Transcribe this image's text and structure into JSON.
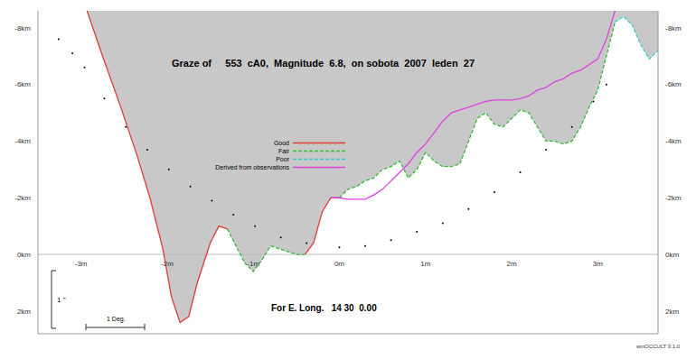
{
  "chart_data": {
    "type": "line",
    "title": "Graze of     553  cA0,  Magnitude  6.8,  on sobota  2007  leden  27",
    "annotations": [
      "For E. Long.   14 30  0.00",
      "1 Deg.",
      "1 \"",
      "winOCCULT 3.1.0"
    ],
    "color": "#c8c8c8",
    "grid": false,
    "legend": "center",
    "xlim": [
      -3.5,
      3.7
    ],
    "xticks": [
      {
        "value": -3,
        "label": "-3m"
      },
      {
        "value": -2,
        "label": "-2m"
      },
      {
        "value": -1,
        "label": "-1m"
      },
      {
        "value": 0,
        "label": "0m"
      },
      {
        "value": 1,
        "label": "1m"
      },
      {
        "value": 2,
        "label": "2m"
      },
      {
        "value": 3,
        "label": "3m"
      }
    ],
    "ylim": [
      -8.6,
      2.8
    ],
    "yticks": [
      {
        "value": -8,
        "label": "-8km"
      },
      {
        "value": -6,
        "label": "-6km"
      },
      {
        "value": -4,
        "label": "-4km"
      },
      {
        "value": -2,
        "label": "-2km"
      },
      {
        "value": 0,
        "label": "0km"
      },
      {
        "value": 2,
        "label": "2km"
      }
    ],
    "x": [
      -2.93,
      -2.75,
      -2.55,
      -2.35,
      -2.2,
      -2.05,
      -1.95,
      -1.85,
      -1.75,
      -1.65,
      -1.5,
      -1.4,
      -1.3,
      -1.2,
      -1.1,
      -1.0,
      -0.9,
      -0.8,
      -0.7,
      -0.6,
      -0.5,
      -0.4,
      -0.3,
      -0.2,
      -0.1,
      0.0,
      0.1,
      0.2,
      0.3,
      0.4,
      0.5,
      0.6,
      0.7,
      0.8,
      0.9,
      1.0,
      1.1,
      1.2,
      1.3,
      1.4,
      1.5,
      1.6,
      1.7,
      1.8,
      1.9,
      2.0,
      2.1,
      2.2,
      2.3,
      2.4,
      2.5,
      2.6,
      2.7,
      2.8,
      2.9,
      3.0,
      3.1,
      3.2,
      3.3,
      3.4,
      3.5,
      3.6,
      3.7
    ],
    "series": [
      {
        "name": "Good",
        "type": "area",
        "color": "#e03c31",
        "line_style": "solid",
        "values": [
          -8.6,
          -7.0,
          -5.3,
          -3.5,
          -2.0,
          -0.2,
          1.5,
          2.4,
          2.2,
          1.0,
          -0.4,
          -1.0,
          -0.9,
          null,
          null,
          null,
          null,
          null,
          null,
          null,
          null,
          0.0,
          -0.4,
          -1.5,
          -2.0,
          -2.0,
          null,
          null,
          null,
          null,
          null,
          null,
          null,
          null,
          null,
          null,
          null,
          null,
          null,
          null,
          null,
          null,
          null,
          null,
          null,
          null,
          null,
          null,
          null,
          null,
          null,
          null,
          null,
          null,
          null,
          null,
          null,
          null,
          null,
          null,
          null,
          null,
          null
        ]
      },
      {
        "name": "Fair",
        "type": "area",
        "color": "#33bb33",
        "line_style": "dashed",
        "values": [
          null,
          null,
          null,
          null,
          null,
          null,
          null,
          null,
          null,
          null,
          null,
          null,
          -0.9,
          -0.3,
          0.3,
          0.6,
          0.2,
          -0.3,
          -0.2,
          -0.1,
          0.0,
          0.0,
          null,
          null,
          null,
          -2.0,
          -2.3,
          -2.4,
          -2.6,
          -2.7,
          -3.0,
          -3.1,
          -3.3,
          -2.7,
          -3.0,
          -3.6,
          -3.3,
          -3.1,
          -3.1,
          -3.2,
          -4.0,
          -4.8,
          -5.0,
          -4.6,
          -4.5,
          -4.8,
          -5.1,
          -5.0,
          -4.5,
          -4.0,
          -4.0,
          -3.9,
          -4.0,
          -4.5,
          -5.2,
          -5.8,
          -7.0,
          -8.2,
          null,
          null,
          null,
          null,
          null
        ]
      },
      {
        "name": "Poor",
        "type": "area",
        "color": "#33cccc",
        "line_style": "dashed",
        "values": [
          null,
          null,
          null,
          null,
          null,
          null,
          null,
          null,
          null,
          null,
          null,
          null,
          null,
          null,
          null,
          null,
          null,
          null,
          null,
          null,
          null,
          null,
          null,
          null,
          null,
          null,
          null,
          null,
          null,
          null,
          null,
          null,
          null,
          null,
          null,
          null,
          null,
          null,
          null,
          null,
          null,
          null,
          null,
          null,
          null,
          null,
          null,
          null,
          null,
          null,
          null,
          null,
          null,
          null,
          null,
          null,
          null,
          -8.2,
          -8.4,
          -8.1,
          -7.4,
          -6.9,
          -7.2
        ]
      },
      {
        "name": "Derived from observations",
        "type": "line",
        "color": "#e040e0",
        "line_style": "solid",
        "values": [
          null,
          null,
          null,
          null,
          null,
          null,
          null,
          null,
          null,
          null,
          null,
          null,
          null,
          null,
          null,
          null,
          null,
          null,
          null,
          null,
          null,
          null,
          null,
          null,
          -2.0,
          -2.0,
          -1.95,
          -1.95,
          -1.95,
          -2.1,
          -2.3,
          -2.6,
          -2.9,
          -3.2,
          -3.6,
          -3.9,
          -4.3,
          -4.7,
          -5.0,
          -5.1,
          -5.2,
          -5.3,
          -5.4,
          -5.45,
          -5.45,
          -5.45,
          -5.5,
          -5.6,
          -5.8,
          -5.9,
          -6.1,
          -6.2,
          -6.4,
          -6.5,
          -6.7,
          -6.9,
          -7.6,
          -8.6,
          null,
          null,
          null,
          null,
          null
        ]
      }
    ],
    "reference_points": {
      "color": "#000000",
      "marker": "dot",
      "x": [
        -3.26,
        -3.1,
        -2.96,
        -2.73,
        -2.48,
        -2.23,
        -1.98,
        -1.73,
        -1.48,
        -1.23,
        -0.98,
        -0.68,
        -0.38,
        0.0,
        0.3,
        0.6,
        0.9,
        1.2,
        1.5,
        1.8,
        2.1,
        2.4,
        2.7,
        2.95,
        3.1
      ],
      "values": [
        -7.6,
        -7.1,
        -6.6,
        -5.5,
        -4.5,
        -3.7,
        -3.0,
        -2.4,
        -1.9,
        -1.4,
        -1.0,
        -0.6,
        -0.4,
        -0.25,
        -0.3,
        -0.5,
        -0.8,
        -1.1,
        -1.6,
        -2.2,
        -2.9,
        -3.7,
        -4.5,
        -5.4,
        -6.0
      ]
    }
  }
}
